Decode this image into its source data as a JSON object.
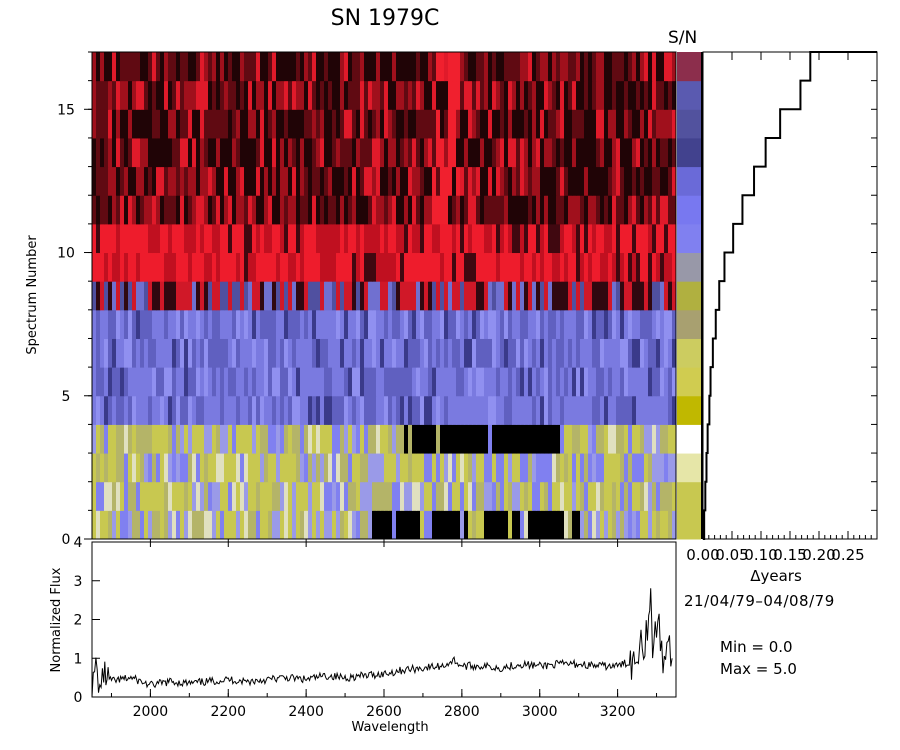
{
  "title": "SN  1979C",
  "sn_header": "S/N",
  "date_range": "21/04/79–04/08/79",
  "min_label": "Min =  0.0",
  "max_label": "Max =  5.0",
  "chart_data": [
    {
      "type": "heatmap",
      "xlabel": "",
      "ylabel": "Spectrum Number",
      "xlim": [
        1850,
        3350
      ],
      "ylim": [
        0,
        17
      ],
      "yticks": [
        0,
        5,
        10,
        15
      ],
      "rows": [
        {
          "spectrum": 1,
          "palette": "yellow-blue",
          "dark_band": [
            2560,
            3100
          ]
        },
        {
          "spectrum": 2,
          "palette": "yellow-blue",
          "dark_band": null
        },
        {
          "spectrum": 3,
          "palette": "yellow-blue",
          "dark_band": null
        },
        {
          "spectrum": 4,
          "palette": "yellow-blue",
          "dark_band": [
            2650,
            3050
          ]
        },
        {
          "spectrum": 5,
          "palette": "blue",
          "dark_band": null
        },
        {
          "spectrum": 6,
          "palette": "blue",
          "dark_band": null
        },
        {
          "spectrum": 7,
          "palette": "blue",
          "dark_band": null
        },
        {
          "spectrum": 8,
          "palette": "blue",
          "dark_band": null
        },
        {
          "spectrum": 9,
          "palette": "red-blue",
          "dark_band": null
        },
        {
          "spectrum": 10,
          "palette": "red",
          "dark_band": null
        },
        {
          "spectrum": 11,
          "palette": "red",
          "dark_band": null
        },
        {
          "spectrum": 12,
          "palette": "dark-red",
          "dark_band": null
        },
        {
          "spectrum": 13,
          "palette": "dark-red",
          "dark_band": null
        },
        {
          "spectrum": 14,
          "palette": "dark-red",
          "dark_band": null
        },
        {
          "spectrum": 15,
          "palette": "dark-red",
          "dark_band": null
        },
        {
          "spectrum": 16,
          "palette": "dark-red",
          "dark_band": null
        },
        {
          "spectrum": 17,
          "palette": "dark-red",
          "dark_band": null
        }
      ]
    },
    {
      "type": "heatmap",
      "title": "S/N",
      "colors": [
        "#c8c850",
        "#c8c850",
        "#e6e6a8",
        "#ffffff",
        "#c0b800",
        "#d0cc50",
        "#cccc60",
        "#a8a070",
        "#b0b040",
        "#9898a8",
        "#8080f0",
        "#7878f0",
        "#6a6ad8",
        "#42428e",
        "#52529e",
        "#5a5ab0",
        "#8c2e4c"
      ]
    },
    {
      "type": "line",
      "xlabel": "Δyears",
      "ylabel": "",
      "xlim": [
        0,
        0.3
      ],
      "ylim": [
        0,
        17
      ],
      "xticks": [
        0.0,
        0.05,
        0.1,
        0.15,
        0.2,
        0.25
      ],
      "xtick_labels": [
        "0.00",
        "0.05",
        "0.10",
        "0.15",
        "0.20",
        "0.25"
      ],
      "x": [
        0.0,
        0.002,
        0.004,
        0.006,
        0.008,
        0.011,
        0.013,
        0.017,
        0.022,
        0.028,
        0.037,
        0.052,
        0.068,
        0.088,
        0.108,
        0.133,
        0.168,
        0.185
      ],
      "y": [
        0,
        1,
        2,
        3,
        4,
        5,
        6,
        7,
        8,
        9,
        10,
        11,
        12,
        13,
        14,
        15,
        16,
        17
      ]
    },
    {
      "type": "line",
      "xlabel": "Wavelength",
      "ylabel": "Normalized Flux",
      "xlim": [
        1850,
        3350
      ],
      "ylim": [
        0,
        4
      ],
      "xticks": [
        2000,
        2200,
        2400,
        2600,
        2800,
        3000,
        3200
      ],
      "yticks": [
        0,
        1,
        2,
        3,
        4
      ],
      "x": [
        1850,
        1860,
        1870,
        1880,
        1900,
        1950,
        2000,
        2050,
        2100,
        2150,
        2200,
        2250,
        2300,
        2350,
        2400,
        2450,
        2500,
        2550,
        2600,
        2650,
        2700,
        2750,
        2780,
        2800,
        2850,
        2900,
        2950,
        3000,
        3050,
        3100,
        3150,
        3200,
        3230,
        3250,
        3260,
        3270,
        3280,
        3285,
        3290,
        3300,
        3310,
        3320,
        3330,
        3340
      ],
      "y": [
        0.1,
        0.8,
        0.2,
        0.6,
        0.4,
        0.5,
        0.3,
        0.4,
        0.35,
        0.4,
        0.45,
        0.4,
        0.45,
        0.5,
        0.45,
        0.55,
        0.5,
        0.55,
        0.6,
        0.7,
        0.75,
        0.8,
        0.95,
        0.8,
        0.8,
        0.75,
        0.85,
        0.8,
        0.85,
        0.85,
        0.8,
        0.8,
        0.9,
        1.0,
        1.8,
        1.3,
        2.2,
        3.0,
        1.0,
        2.0,
        1.5,
        0.7,
        1.7,
        1.0
      ]
    }
  ]
}
